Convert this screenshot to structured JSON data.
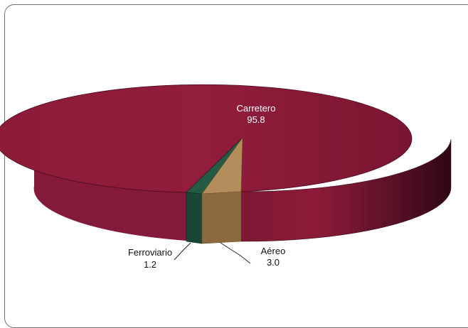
{
  "chart_data": {
    "type": "pie",
    "style": "3d",
    "categories": [
      "Carretero",
      "Aéreo",
      "Ferroviario"
    ],
    "values": [
      95.8,
      3.0,
      1.2
    ],
    "labels": [
      {
        "name": "Carretero",
        "value": "95.8"
      },
      {
        "name": "Aéreo",
        "value": "3.0"
      },
      {
        "name": "Ferroviario",
        "value": "1.2"
      }
    ],
    "colors": {
      "Carretero": "#8e1b3a",
      "Aéreo": "#b08a5a",
      "Ferroviario": "#1e4a3a"
    },
    "legend": "none"
  }
}
